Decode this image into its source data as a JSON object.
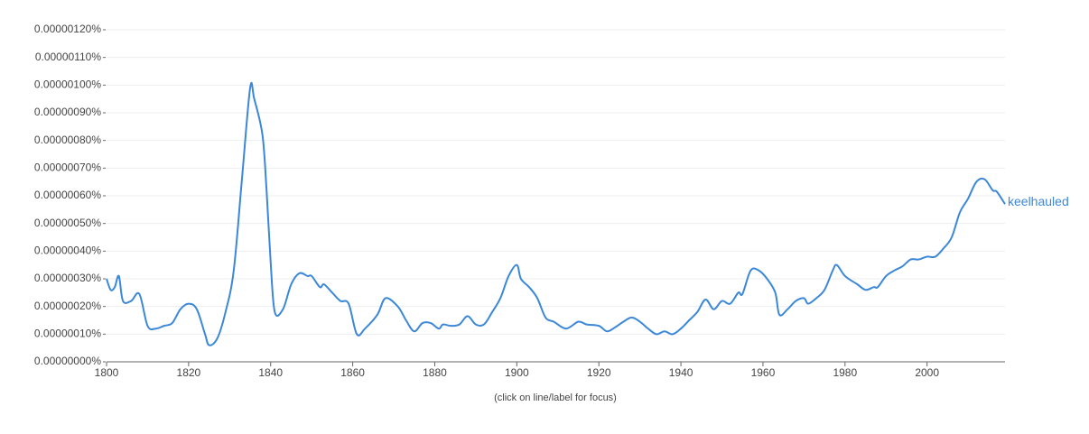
{
  "chart_data": {
    "type": "line",
    "x": [
      1800,
      1801,
      1802,
      1803,
      1804,
      1806,
      1808,
      1810,
      1812,
      1814,
      1816,
      1818,
      1820,
      1822,
      1824,
      1825,
      1827,
      1829,
      1831,
      1833,
      1835,
      1836,
      1838,
      1839,
      1840,
      1841,
      1843,
      1845,
      1847,
      1849,
      1850,
      1852,
      1853,
      1855,
      1857,
      1859,
      1861,
      1863,
      1866,
      1868,
      1871,
      1873,
      1875,
      1877,
      1879,
      1881,
      1882,
      1884,
      1886,
      1888,
      1890,
      1892,
      1894,
      1896,
      1898,
      1900,
      1901,
      1903,
      1905,
      1907,
      1909,
      1912,
      1915,
      1917,
      1920,
      1922,
      1924,
      1926,
      1928,
      1930,
      1932,
      1934,
      1936,
      1938,
      1940,
      1942,
      1944,
      1946,
      1948,
      1950,
      1952,
      1954,
      1955,
      1957,
      1959,
      1961,
      1963,
      1964,
      1966,
      1968,
      1970,
      1971,
      1973,
      1975,
      1977,
      1978,
      1980,
      1983,
      1985,
      1987,
      1988,
      1990,
      1992,
      1994,
      1996,
      1998,
      2000,
      2002,
      2004,
      2006,
      2008,
      2010,
      2012,
      2014,
      2016,
      2017,
      2019
    ],
    "series": [
      {
        "name": "keelhauled",
        "color": "#3b87d8",
        "values": [
          3e-07,
          2.6e-07,
          2.7e-07,
          3.1e-07,
          2.2e-07,
          2.2e-07,
          2.45e-07,
          1.3e-07,
          1.2e-07,
          1.3e-07,
          1.4e-07,
          1.9e-07,
          2.1e-07,
          1.9e-07,
          1e-07,
          6e-08,
          8.5e-08,
          1.8e-07,
          3.3e-07,
          6.6e-07,
          9.9e-07,
          9.5e-07,
          8.2e-07,
          6.2e-07,
          3.6e-07,
          1.8e-07,
          1.9e-07,
          2.8e-07,
          3.2e-07,
          3.1e-07,
          3.1e-07,
          2.7e-07,
          2.8e-07,
          2.5e-07,
          2.2e-07,
          2.1e-07,
          1e-07,
          1.2e-07,
          1.7e-07,
          2.3e-07,
          2e-07,
          1.5e-07,
          1.1e-07,
          1.4e-07,
          1.4e-07,
          1.2e-07,
          1.35e-07,
          1.3e-07,
          1.35e-07,
          1.65e-07,
          1.35e-07,
          1.35e-07,
          1.8e-07,
          2.3e-07,
          3.1e-07,
          3.5e-07,
          3e-07,
          2.7e-07,
          2.3e-07,
          1.6e-07,
          1.45e-07,
          1.2e-07,
          1.45e-07,
          1.35e-07,
          1.3e-07,
          1.1e-07,
          1.25e-07,
          1.45e-07,
          1.6e-07,
          1.45e-07,
          1.2e-07,
          1e-07,
          1.1e-07,
          1e-07,
          1.2e-07,
          1.5e-07,
          1.8e-07,
          2.25e-07,
          1.9e-07,
          2.2e-07,
          2.1e-07,
          2.5e-07,
          2.45e-07,
          3.3e-07,
          3.3e-07,
          3e-07,
          2.5e-07,
          1.7e-07,
          1.9e-07,
          2.2e-07,
          2.3e-07,
          2.1e-07,
          2.3e-07,
          2.6e-07,
          3.3e-07,
          3.5e-07,
          3.1e-07,
          2.8e-07,
          2.6e-07,
          2.7e-07,
          2.7e-07,
          3.1e-07,
          3.3e-07,
          3.45e-07,
          3.7e-07,
          3.7e-07,
          3.8e-07,
          3.8e-07,
          4.1e-07,
          4.5e-07,
          5.4e-07,
          5.9e-07,
          6.5e-07,
          6.6e-07,
          6.2e-07,
          6.15e-07,
          5.7e-07
        ]
      }
    ],
    "xlim": [
      1800,
      2019
    ],
    "xticks": [
      1800,
      1820,
      1840,
      1860,
      1880,
      1900,
      1920,
      1940,
      1960,
      1980,
      2000
    ],
    "ylim": [
      0,
      1.2e-06
    ],
    "yticks": [
      {
        "value": 0,
        "label": "0.00000000%"
      },
      {
        "value": 1e-07,
        "label": "0.00000010%"
      },
      {
        "value": 2e-07,
        "label": "0.00000020%"
      },
      {
        "value": 3e-07,
        "label": "0.00000030%"
      },
      {
        "value": 4e-07,
        "label": "0.00000040%"
      },
      {
        "value": 5e-07,
        "label": "0.00000050%"
      },
      {
        "value": 6e-07,
        "label": "0.00000060%"
      },
      {
        "value": 7e-07,
        "label": "0.00000070%"
      },
      {
        "value": 8e-07,
        "label": "0.00000080%"
      },
      {
        "value": 9e-07,
        "label": "0.00000090%"
      },
      {
        "value": 1e-06,
        "label": "0.00000100%"
      },
      {
        "value": 1.1e-06,
        "label": "0.00000110%"
      },
      {
        "value": 1.2e-06,
        "label": "0.00000120%"
      }
    ],
    "grid": true,
    "note": "(click on line/label for focus)"
  }
}
